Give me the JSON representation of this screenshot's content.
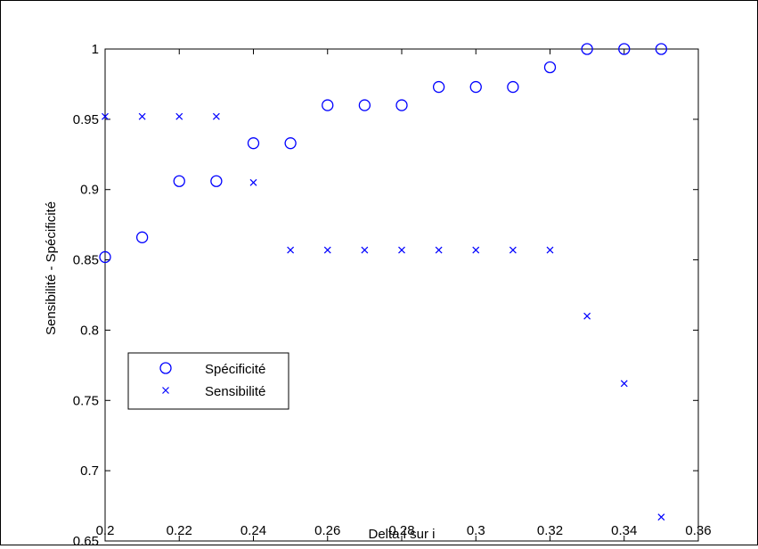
{
  "chart_data": {
    "type": "scatter",
    "title": "",
    "xlabel": "Delta i sur i",
    "ylabel": "Sensibilité - Spécificité",
    "xlim": [
      0.2,
      0.36
    ],
    "ylim": [
      0.65,
      1.0
    ],
    "xticks": [
      0.2,
      0.22,
      0.24,
      0.26,
      0.28,
      0.3,
      0.32,
      0.34,
      0.36
    ],
    "xtick_labels": [
      "0.2",
      "0.22",
      "0.24",
      "0.26",
      "0.28",
      "0.3",
      "0.32",
      "0.34",
      "0.36"
    ],
    "yticks": [
      0.65,
      0.7,
      0.75,
      0.8,
      0.85,
      0.9,
      0.95,
      1.0
    ],
    "ytick_labels": [
      "0.65",
      "0.7",
      "0.75",
      "0.8",
      "0.85",
      "0.9",
      "0.95",
      "1"
    ],
    "grid": false,
    "legend_position": "lower-left",
    "series": [
      {
        "name": "Spécificité",
        "marker": "circle",
        "color": "#0000ff",
        "x": [
          0.2,
          0.21,
          0.22,
          0.23,
          0.24,
          0.25,
          0.26,
          0.27,
          0.28,
          0.29,
          0.3,
          0.31,
          0.32,
          0.33,
          0.34,
          0.35
        ],
        "y": [
          0.852,
          0.866,
          0.906,
          0.906,
          0.933,
          0.933,
          0.96,
          0.96,
          0.96,
          0.973,
          0.973,
          0.973,
          0.987,
          1.0,
          1.0,
          1.0
        ]
      },
      {
        "name": "Sensibilité",
        "marker": "x",
        "color": "#0000ff",
        "x": [
          0.2,
          0.21,
          0.22,
          0.23,
          0.24,
          0.25,
          0.26,
          0.27,
          0.28,
          0.29,
          0.3,
          0.31,
          0.32,
          0.33,
          0.34,
          0.35
        ],
        "y": [
          0.952,
          0.952,
          0.952,
          0.952,
          0.905,
          0.857,
          0.857,
          0.857,
          0.857,
          0.857,
          0.857,
          0.857,
          0.857,
          0.81,
          0.762,
          0.667
        ]
      }
    ]
  }
}
